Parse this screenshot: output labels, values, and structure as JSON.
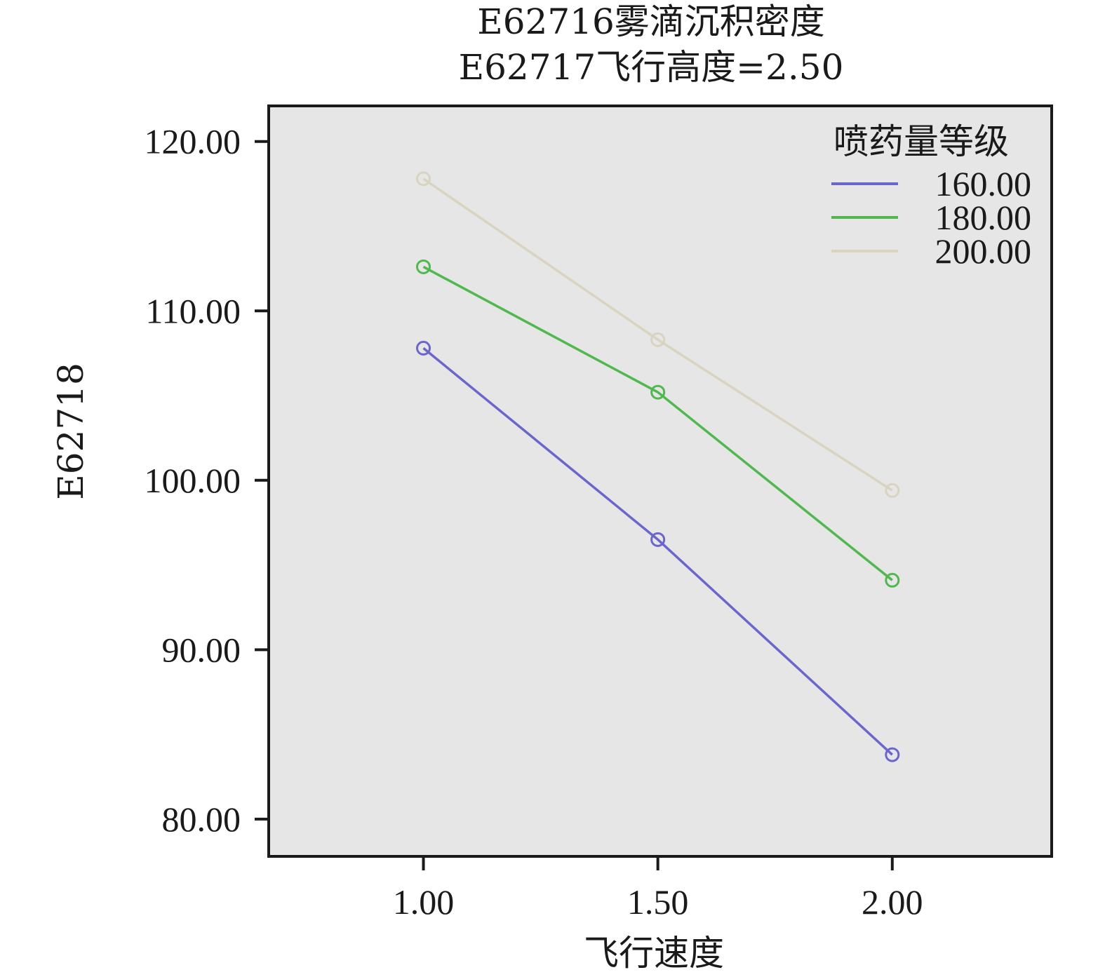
{
  "chart_data": {
    "type": "line",
    "title": "E62716雾滴沉积密度",
    "subtitle": "E62717飞行高度=2.50",
    "xlabel": "飞行速度",
    "ylabel": "E62718",
    "x": [
      1.0,
      1.5,
      2.0
    ],
    "x_tick_labels": [
      "1.00",
      "1.50",
      "2.00"
    ],
    "xlim": [
      0.67,
      2.34
    ],
    "ylim": [
      77.8,
      122.1
    ],
    "y_ticks": [
      80,
      90,
      100,
      110,
      120
    ],
    "y_tick_labels": [
      "80.00",
      "90.00",
      "100.00",
      "110.00",
      "120.00"
    ],
    "grid": false,
    "background_color": "#e6e6e6",
    "legend": {
      "title": "喷药量等级",
      "placement": "top-right"
    },
    "series": [
      {
        "name": "160.00",
        "color": "#6a66cc",
        "values": [
          107.8,
          96.5,
          83.8
        ]
      },
      {
        "name": "180.00",
        "color": "#50b84e",
        "values": [
          112.6,
          105.2,
          94.1
        ]
      },
      {
        "name": "200.00",
        "color": "#d9d4c0",
        "values": [
          117.8,
          108.3,
          99.4
        ]
      }
    ]
  }
}
